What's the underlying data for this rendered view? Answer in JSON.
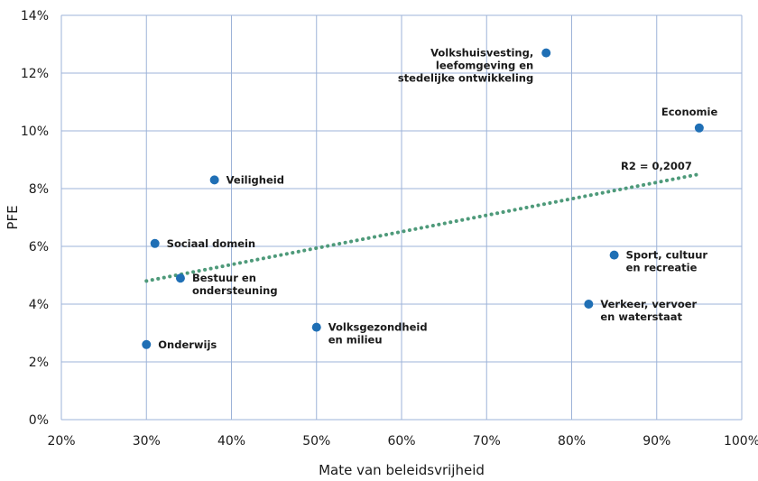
{
  "chart_data": {
    "type": "scatter",
    "xlabel": "Mate van beleidsvrijheid",
    "ylabel": "PFE",
    "xlim": [
      20,
      100
    ],
    "ylim": [
      0,
      14
    ],
    "x_ticks": [
      "20%",
      "30%",
      "40%",
      "50%",
      "60%",
      "70%",
      "80%",
      "90%",
      "100%"
    ],
    "y_ticks": [
      "0%",
      "2%",
      "4%",
      "6%",
      "8%",
      "10%",
      "12%",
      "14%"
    ],
    "grid": true,
    "point_color": "#1f6fb5",
    "trend_color": "#4e9a7a",
    "points": [
      {
        "label": [
          "Onderwijs"
        ],
        "x": 30,
        "y": 2.6
      },
      {
        "label": [
          "Sociaal domein"
        ],
        "x": 31,
        "y": 6.1
      },
      {
        "label": [
          "Bestuur en",
          "ondersteuning"
        ],
        "x": 34,
        "y": 4.9
      },
      {
        "label": [
          "Veiligheid"
        ],
        "x": 38,
        "y": 8.3
      },
      {
        "label": [
          "Volksgezondheid",
          "en milieu"
        ],
        "x": 50,
        "y": 3.2
      },
      {
        "label": [
          "Volkshuisvesting,",
          "leefomgeving en",
          "stedelijke ontwikkeling"
        ],
        "x": 77,
        "y": 12.7
      },
      {
        "label": [
          "Verkeer, vervoer",
          "en waterstaat"
        ],
        "x": 82,
        "y": 4.0
      },
      {
        "label": [
          "Sport, cultuur",
          "en recreatie"
        ],
        "x": 85,
        "y": 5.7
      },
      {
        "label": [
          "Economie"
        ],
        "x": 95,
        "y": 10.1
      }
    ],
    "trendline": {
      "x": [
        30,
        95
      ],
      "y": [
        4.8,
        8.5
      ],
      "label": "R2 = 0,2007"
    }
  }
}
